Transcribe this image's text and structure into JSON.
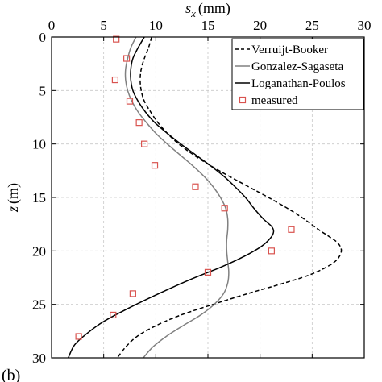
{
  "chart_data": {
    "type": "line",
    "xlabel": "s",
    "xlabel_sub": "x",
    "xlabel_unit": "(mm)",
    "ylabel": "z",
    "ylabel_unit": "(m)",
    "xlim": [
      0,
      30
    ],
    "ylim": [
      0,
      30
    ],
    "y_inverted": true,
    "x_axis_position": "top",
    "grid": true,
    "x_ticks": [
      0,
      5,
      10,
      15,
      20,
      25,
      30
    ],
    "y_ticks": [
      0,
      5,
      10,
      15,
      20,
      25,
      30
    ],
    "legend_position": "top-right",
    "panel_label": "(b)",
    "series": [
      {
        "name": "Verruijt-Booker",
        "style": "dashed",
        "color": "#000000",
        "points": [
          [
            9.6,
            0
          ],
          [
            9.3,
            1
          ],
          [
            8.9,
            2
          ],
          [
            8.6,
            3
          ],
          [
            8.5,
            4
          ],
          [
            8.6,
            5
          ],
          [
            8.9,
            6
          ],
          [
            9.5,
            7
          ],
          [
            10.2,
            8
          ],
          [
            11.1,
            9
          ],
          [
            12.2,
            10
          ],
          [
            13.6,
            11
          ],
          [
            15.2,
            12
          ],
          [
            17.0,
            13
          ],
          [
            18.9,
            14
          ],
          [
            20.8,
            15
          ],
          [
            22.6,
            16
          ],
          [
            24.2,
            17
          ],
          [
            25.6,
            18
          ],
          [
            26.7,
            18.7
          ],
          [
            27.5,
            19.3
          ],
          [
            27.8,
            20
          ],
          [
            27.4,
            20.8
          ],
          [
            26.4,
            21.5
          ],
          [
            24.6,
            22.3
          ],
          [
            22.0,
            23.1
          ],
          [
            18.8,
            24
          ],
          [
            15.5,
            25
          ],
          [
            12.4,
            26
          ],
          [
            10.0,
            27
          ],
          [
            8.2,
            28
          ],
          [
            7.1,
            29
          ],
          [
            6.3,
            30
          ]
        ]
      },
      {
        "name": "Gonzalez-Sagaseta",
        "style": "solid",
        "color": "#808080",
        "points": [
          [
            8.1,
            0
          ],
          [
            7.6,
            1
          ],
          [
            7.3,
            2
          ],
          [
            7.1,
            3
          ],
          [
            7.1,
            4
          ],
          [
            7.3,
            5
          ],
          [
            7.7,
            6
          ],
          [
            8.3,
            7
          ],
          [
            9.1,
            8
          ],
          [
            10.0,
            9
          ],
          [
            11.1,
            10
          ],
          [
            12.3,
            11
          ],
          [
            13.5,
            12
          ],
          [
            14.6,
            13
          ],
          [
            15.5,
            14
          ],
          [
            16.2,
            15
          ],
          [
            16.7,
            16
          ],
          [
            16.9,
            17
          ],
          [
            16.9,
            18
          ],
          [
            16.8,
            19
          ],
          [
            16.8,
            20
          ],
          [
            16.9,
            21
          ],
          [
            17.0,
            22
          ],
          [
            16.9,
            23
          ],
          [
            16.5,
            24
          ],
          [
            15.6,
            25
          ],
          [
            14.3,
            26
          ],
          [
            12.6,
            27
          ],
          [
            11.0,
            28
          ],
          [
            9.7,
            29
          ],
          [
            8.8,
            30
          ]
        ]
      },
      {
        "name": "Loganathan-Poulos",
        "style": "solid",
        "color": "#000000",
        "points": [
          [
            8.9,
            0
          ],
          [
            8.3,
            1
          ],
          [
            7.8,
            2
          ],
          [
            7.6,
            3
          ],
          [
            7.6,
            4
          ],
          [
            7.8,
            5
          ],
          [
            8.3,
            6
          ],
          [
            9.0,
            7
          ],
          [
            9.9,
            8
          ],
          [
            11.1,
            9
          ],
          [
            12.4,
            10
          ],
          [
            13.8,
            11
          ],
          [
            15.2,
            12
          ],
          [
            16.5,
            13
          ],
          [
            17.6,
            14
          ],
          [
            18.6,
            15
          ],
          [
            19.4,
            16
          ],
          [
            20.3,
            17
          ],
          [
            21.1,
            17.7
          ],
          [
            21.3,
            18.2
          ],
          [
            21.0,
            18.8
          ],
          [
            20.1,
            19.6
          ],
          [
            18.5,
            20.5
          ],
          [
            16.3,
            21.5
          ],
          [
            13.5,
            22.6
          ],
          [
            10.5,
            23.9
          ],
          [
            7.5,
            25.3
          ],
          [
            5.0,
            26.6
          ],
          [
            3.3,
            27.8
          ],
          [
            2.2,
            28.8
          ],
          [
            1.6,
            30
          ]
        ]
      }
    ],
    "measured": {
      "name": "measured",
      "color": "#d9534f",
      "points": [
        [
          6.2,
          0.2
        ],
        [
          7.2,
          2.0
        ],
        [
          6.1,
          4.0
        ],
        [
          7.5,
          6.0
        ],
        [
          8.4,
          8.0
        ],
        [
          8.9,
          10.0
        ],
        [
          9.9,
          12.0
        ],
        [
          13.8,
          14.0
        ],
        [
          16.6,
          16.0
        ],
        [
          23.0,
          18.0
        ],
        [
          21.1,
          20.0
        ],
        [
          15.0,
          22.0
        ],
        [
          7.8,
          24.0
        ],
        [
          5.9,
          26.0
        ],
        [
          2.6,
          28.0
        ]
      ]
    }
  }
}
